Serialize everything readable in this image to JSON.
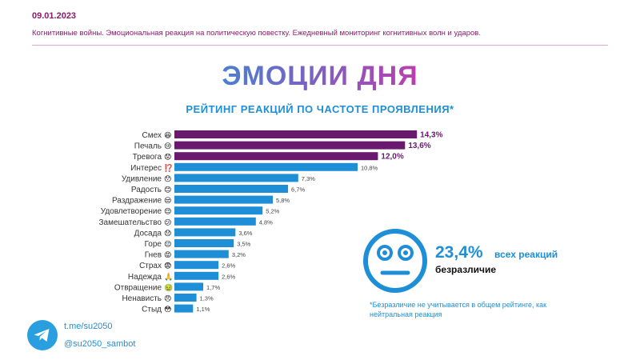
{
  "header": {
    "date": "09.01.2023",
    "subtitle": "Когнитивные войны. Эмоциональная реакция на политическую повестку. Ежедневный мониторинг когнитивных волн и ударов."
  },
  "title": "ЭМОЦИИ ДНЯ",
  "chart_title": "РЕЙТИНГ РЕАКЦИЙ ПО ЧАСТОТЕ ПРОЯВЛЕНИЯ*",
  "chart_data": {
    "type": "bar",
    "orientation": "horizontal",
    "title": "РЕЙТИНГ РЕАКЦИЙ ПО ЧАСТОТЕ ПРОЯВЛЕНИЯ*",
    "categories": [
      "Смех",
      "Печаль",
      "Тревога",
      "Интерес",
      "Удивление",
      "Радость",
      "Раздражение",
      "Удовлетворение",
      "Замешательство",
      "Досада",
      "Горе",
      "Гнев",
      "Страх",
      "Надежда",
      "Отвращение",
      "Ненависть",
      "Стыд"
    ],
    "values": [
      14.3,
      13.6,
      12.0,
      10.8,
      7.3,
      6.7,
      5.8,
      5.2,
      4.8,
      3.6,
      3.5,
      3.2,
      2.6,
      2.6,
      1.7,
      1.3,
      1.1
    ],
    "value_labels": [
      "14,3%",
      "13,6%",
      "12,0%",
      "10,8%",
      "7,3%",
      "6,7%",
      "5,8%",
      "5,2%",
      "4,8%",
      "3,6%",
      "3,5%",
      "3,2%",
      "2,6%",
      "2,6%",
      "1,7%",
      "1,3%",
      "1,1%"
    ],
    "emoji": [
      "😆",
      "😢",
      "😟",
      "⁉️",
      "😯",
      "😊",
      "😒",
      "😌",
      "😕",
      "😞",
      "😔",
      "😡",
      "😨",
      "🙏",
      "🤢",
      "😠",
      "😳"
    ],
    "highlight_top": 3,
    "colors": {
      "top": "#6a1a6e",
      "rest": "#1e8fd6"
    },
    "unit": "%",
    "xlim": [
      0,
      15
    ]
  },
  "highlight": {
    "percent": "23,4%",
    "text": "всех реакций",
    "label": "безразличие"
  },
  "footnote": "*Безразличие не учитывается в общем рейтинге, как нейтральная реакция",
  "footer": {
    "link": "t.me/su2050",
    "bot": "@su2050_sambot"
  },
  "colors": {
    "accent": "#1e8fd6",
    "brand": "#8b1a6b",
    "top_bar": "#6a1a6e"
  }
}
